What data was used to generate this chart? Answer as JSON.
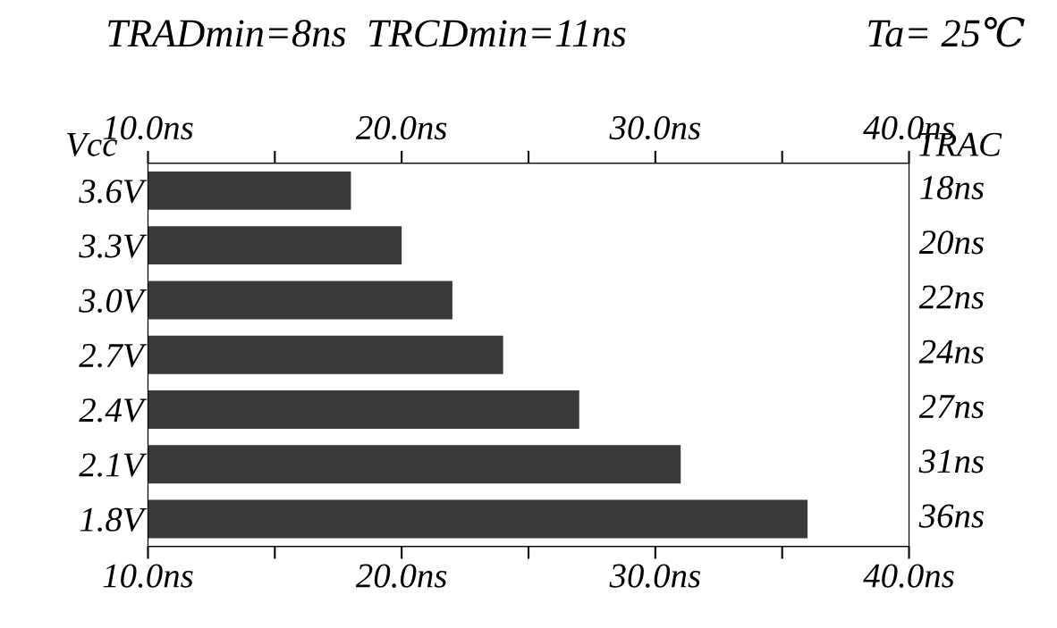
{
  "chart_data": {
    "type": "bar",
    "orientation": "horizontal",
    "title": "TRADmin=8ns  TRCDmin=11ns",
    "annotations": [
      "Ta= 25℃"
    ],
    "ylabel": "Vcc",
    "y2label": "TRAC",
    "categories": [
      "3.6V",
      "3.3V",
      "3.0V",
      "2.7V",
      "2.4V",
      "2.1V",
      "1.8V"
    ],
    "series": [
      {
        "color": "#3a3a3a",
        "values": [
          18,
          20,
          22,
          24,
          27,
          31,
          36
        ],
        "value_labels": [
          "18ns",
          "20ns",
          "22ns",
          "24ns",
          "27ns",
          "31ns",
          "36ns"
        ]
      }
    ],
    "xlim": [
      10,
      40
    ],
    "xticks": [
      {
        "value": 10,
        "label": "10.0ns"
      },
      {
        "value": 15,
        "label": null
      },
      {
        "value": 20,
        "label": "20.0ns"
      },
      {
        "value": 25,
        "label": null
      },
      {
        "value": 30,
        "label": "30.0ns"
      },
      {
        "value": 35,
        "label": null
      },
      {
        "value": 40,
        "label": "40.0ns"
      }
    ],
    "x2lim": [
      10,
      40
    ],
    "x2ticks": [
      {
        "value": 10,
        "label": "10.0ns"
      },
      {
        "value": 15,
        "label": null
      },
      {
        "value": 20,
        "label": "20.0ns"
      },
      {
        "value": 25,
        "label": null
      },
      {
        "value": 30,
        "label": "30.0ns"
      },
      {
        "value": 35,
        "label": null
      },
      {
        "value": 40,
        "label": "40.0ns"
      }
    ],
    "grid": false
  }
}
